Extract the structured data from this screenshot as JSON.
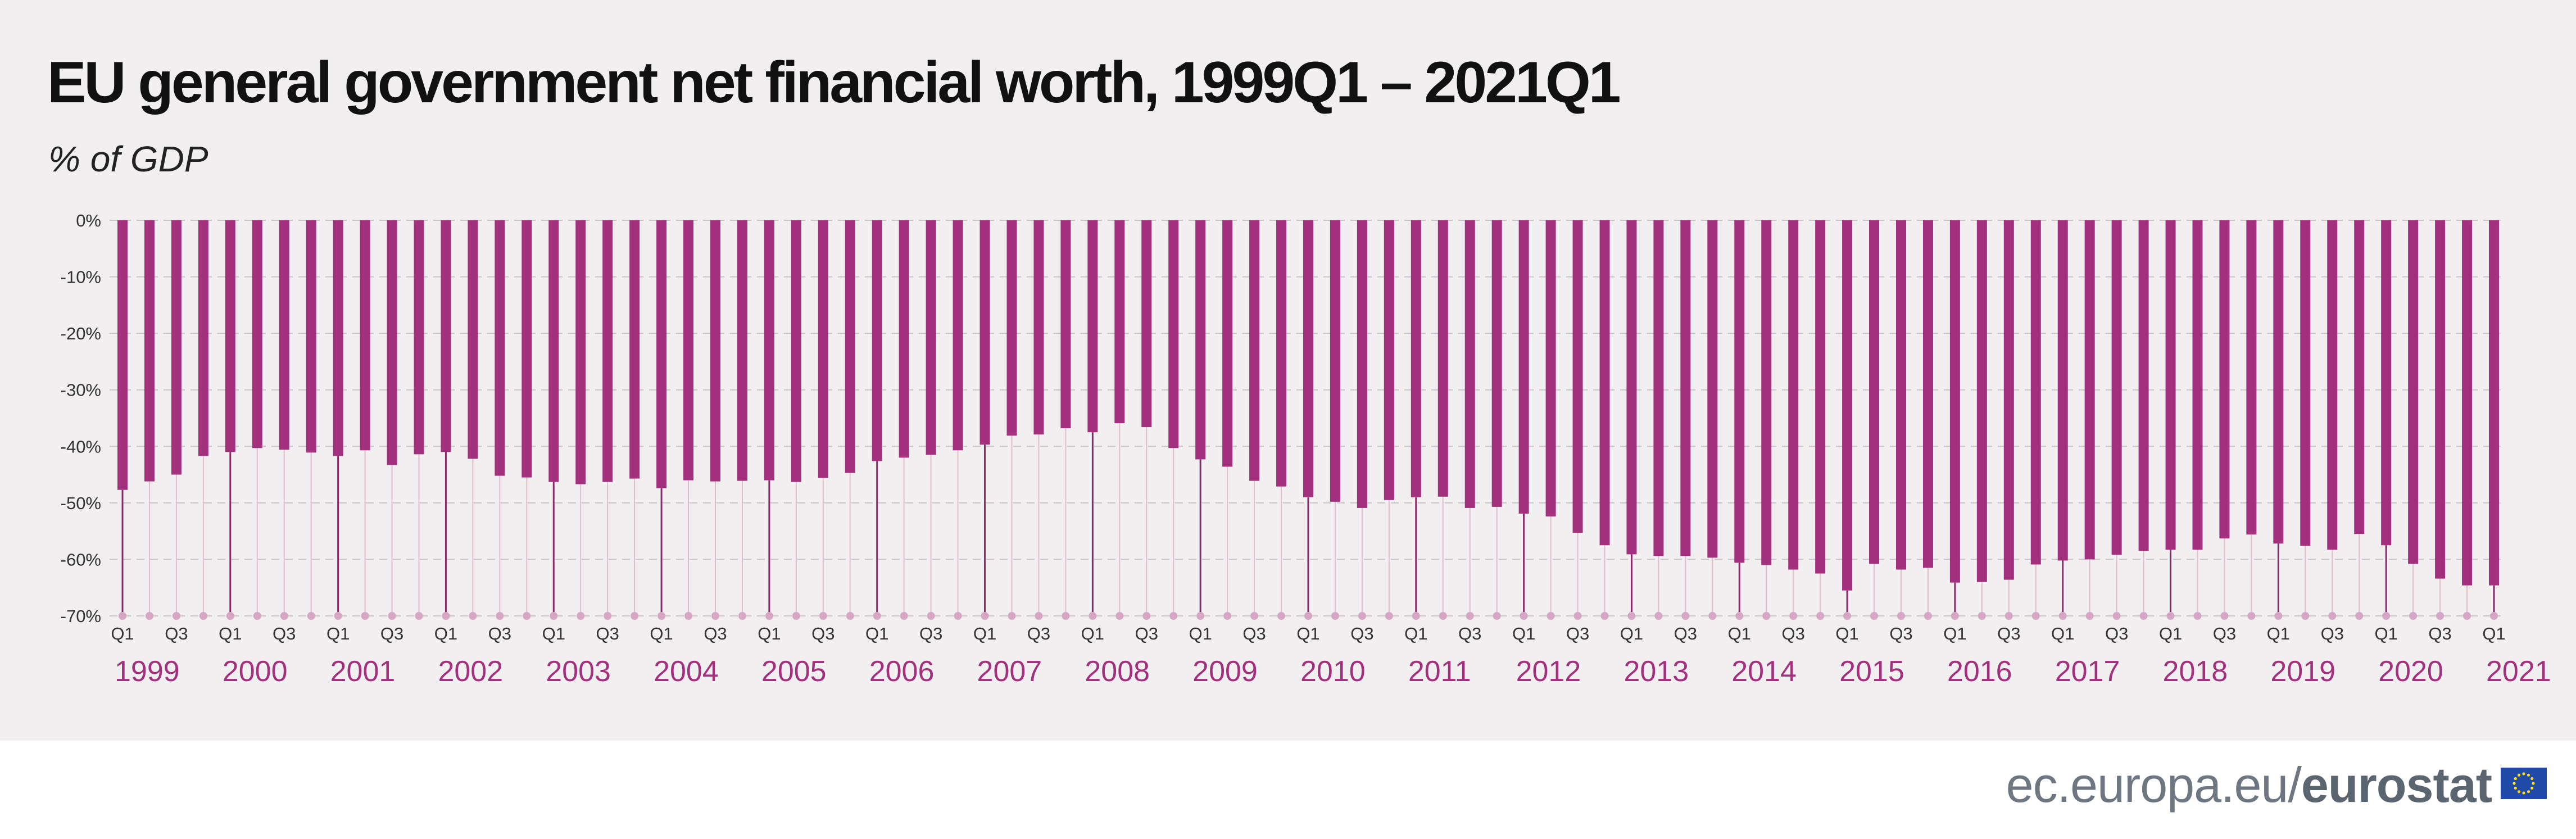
{
  "header": {
    "title": "EU general government net financial worth, 1999Q1 – 2021Q1",
    "subtitle": "% of GDP"
  },
  "footer": {
    "brand_prefix": "ec.europa.eu/",
    "brand_name": "eurostat",
    "flag_icon": "eu-flag-icon"
  },
  "colors": {
    "bar": "#a3307d",
    "stem_q1": "#8a2a6b",
    "stem_other": "#e2bcd3",
    "dot": "#d8a6c5",
    "grid": "#c9c4c8",
    "year_label": "#a3307d",
    "panel_background": "#f2eff1"
  },
  "chart_data": {
    "type": "bar",
    "grid": true,
    "ylim": [
      -70,
      0
    ],
    "y_ticks": [
      0,
      -10,
      -20,
      -30,
      -40,
      -50,
      -60,
      -70
    ],
    "y_tick_labels": [
      "0%",
      "-10%",
      "-20%",
      "-30%",
      "-40%",
      "-50%",
      "-60%",
      "-70%"
    ],
    "x_quarter_labels": [
      "Q1",
      "Q3"
    ],
    "years": [
      "1999",
      "2000",
      "2001",
      "2002",
      "2003",
      "2004",
      "2005",
      "2006",
      "2007",
      "2008",
      "2009",
      "2010",
      "2011",
      "2012",
      "2013",
      "2014",
      "2015",
      "2016",
      "2017",
      "2018",
      "2019",
      "2020",
      "2021"
    ],
    "categories": [
      "1999Q1",
      "1999Q2",
      "1999Q3",
      "1999Q4",
      "2000Q1",
      "2000Q2",
      "2000Q3",
      "2000Q4",
      "2001Q1",
      "2001Q2",
      "2001Q3",
      "2001Q4",
      "2002Q1",
      "2002Q2",
      "2002Q3",
      "2002Q4",
      "2003Q1",
      "2003Q2",
      "2003Q3",
      "2003Q4",
      "2004Q1",
      "2004Q2",
      "2004Q3",
      "2004Q4",
      "2005Q1",
      "2005Q2",
      "2005Q3",
      "2005Q4",
      "2006Q1",
      "2006Q2",
      "2006Q3",
      "2006Q4",
      "2007Q1",
      "2007Q2",
      "2007Q3",
      "2007Q4",
      "2008Q1",
      "2008Q2",
      "2008Q3",
      "2008Q4",
      "2009Q1",
      "2009Q2",
      "2009Q3",
      "2009Q4",
      "2010Q1",
      "2010Q2",
      "2010Q3",
      "2010Q4",
      "2011Q1",
      "2011Q2",
      "2011Q3",
      "2011Q4",
      "2012Q1",
      "2012Q2",
      "2012Q3",
      "2012Q4",
      "2013Q1",
      "2013Q2",
      "2013Q3",
      "2013Q4",
      "2014Q1",
      "2014Q2",
      "2014Q3",
      "2014Q4",
      "2015Q1",
      "2015Q2",
      "2015Q3",
      "2015Q4",
      "2016Q1",
      "2016Q2",
      "2016Q3",
      "2016Q4",
      "2017Q1",
      "2017Q2",
      "2017Q3",
      "2017Q4",
      "2018Q1",
      "2018Q2",
      "2018Q3",
      "2018Q4",
      "2019Q1",
      "2019Q2",
      "2019Q3",
      "2019Q4",
      "2020Q1",
      "2020Q2",
      "2020Q3",
      "2020Q4",
      "2021Q1"
    ],
    "values": [
      -47.7,
      -46.2,
      -45.0,
      -41.7,
      -41.0,
      -40.3,
      -40.6,
      -41.1,
      -41.7,
      -40.7,
      -43.3,
      -41.4,
      -41.0,
      -42.2,
      -45.2,
      -45.5,
      -46.3,
      -46.7,
      -46.3,
      -45.7,
      -47.4,
      -46.0,
      -46.2,
      -46.1,
      -46.0,
      -46.3,
      -45.6,
      -44.7,
      -42.6,
      -42.0,
      -41.5,
      -40.7,
      -39.7,
      -38.1,
      -37.9,
      -36.8,
      -37.5,
      -35.9,
      -36.6,
      -40.3,
      -42.3,
      -43.6,
      -46.1,
      -47.1,
      -49.0,
      -49.8,
      -50.9,
      -49.5,
      -49.0,
      -48.9,
      -50.9,
      -50.7,
      -51.9,
      -52.4,
      -55.3,
      -57.5,
      -59.1,
      -59.4,
      -59.4,
      -59.7,
      -60.6,
      -61.0,
      -61.8,
      -62.5,
      -65.5,
      -60.8,
      -61.8,
      -61.5,
      -64.1,
      -64.0,
      -63.6,
      -60.9,
      -60.2,
      -60.0,
      -59.2,
      -58.5,
      -58.3,
      -58.3,
      -56.3,
      -55.6,
      -57.2,
      -57.6,
      -58.3,
      -55.5,
      -57.5,
      -60.8,
      -63.4,
      -64.6,
      -64.6
    ]
  }
}
